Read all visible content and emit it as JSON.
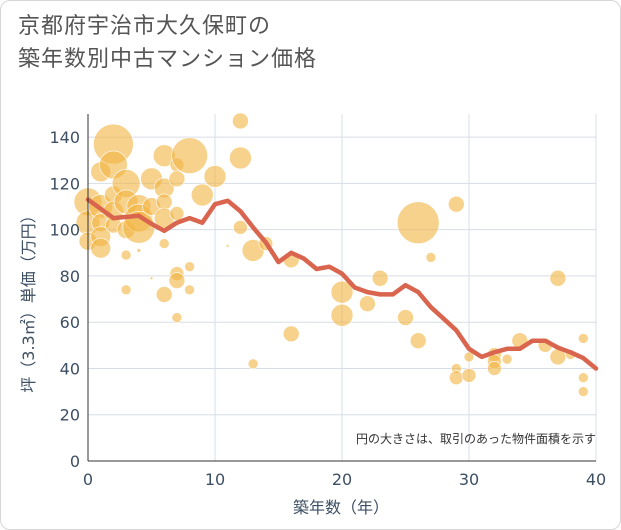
{
  "title_line1": "京都府宇治市大久保町の",
  "title_line2": "築年数別中古マンション価格",
  "chart_data": {
    "type": "scatter",
    "title": "京都府宇治市大久保町の築年数別中古マンション価格",
    "xlabel": "築年数（年）",
    "ylabel": "坪（3.3㎡）単価（万円）",
    "xlim": [
      0,
      40
    ],
    "ylim": [
      0,
      150
    ],
    "x_ticks": [
      0,
      10,
      20,
      30,
      40
    ],
    "y_ticks": [
      0,
      20,
      40,
      60,
      80,
      100,
      120,
      140
    ],
    "grid": true,
    "annotation": "円の大きさは、取引のあった物件面積を示す",
    "colors": {
      "bubble": "#f2b441",
      "line": "#d9654f",
      "grid": "#d7dde4",
      "axis_text": "#3d4f63"
    },
    "series": [
      {
        "kind": "bubble",
        "points": [
          {
            "x": 0,
            "y": 112,
            "s": 14
          },
          {
            "x": 0,
            "y": 103,
            "s": 12
          },
          {
            "x": 0,
            "y": 95,
            "s": 9
          },
          {
            "x": 1,
            "y": 125,
            "s": 10
          },
          {
            "x": 1,
            "y": 110,
            "s": 12
          },
          {
            "x": 1,
            "y": 103,
            "s": 9
          },
          {
            "x": 1,
            "y": 97,
            "s": 10
          },
          {
            "x": 1,
            "y": 92,
            "s": 10
          },
          {
            "x": 2,
            "y": 137,
            "s": 20
          },
          {
            "x": 2,
            "y": 128,
            "s": 14
          },
          {
            "x": 2,
            "y": 115,
            "s": 9
          },
          {
            "x": 2,
            "y": 108,
            "s": 10
          },
          {
            "x": 2,
            "y": 102,
            "s": 8
          },
          {
            "x": 3,
            "y": 120,
            "s": 14
          },
          {
            "x": 3,
            "y": 112,
            "s": 12
          },
          {
            "x": 3,
            "y": 100,
            "s": 9
          },
          {
            "x": 3,
            "y": 89,
            "s": 5
          },
          {
            "x": 3,
            "y": 74,
            "s": 5
          },
          {
            "x": 4,
            "y": 110,
            "s": 12
          },
          {
            "x": 4,
            "y": 105,
            "s": 14
          },
          {
            "x": 4,
            "y": 101,
            "s": 16
          },
          {
            "x": 4,
            "y": 91,
            "s": 2
          },
          {
            "x": 5,
            "y": 122,
            "s": 11
          },
          {
            "x": 5,
            "y": 110,
            "s": 9
          },
          {
            "x": 5,
            "y": 79,
            "s": 1.5
          },
          {
            "x": 6,
            "y": 132,
            "s": 11
          },
          {
            "x": 6,
            "y": 118,
            "s": 10
          },
          {
            "x": 6,
            "y": 112,
            "s": 8
          },
          {
            "x": 6,
            "y": 105,
            "s": 10
          },
          {
            "x": 6,
            "y": 94,
            "s": 5
          },
          {
            "x": 6,
            "y": 72,
            "s": 8
          },
          {
            "x": 7,
            "y": 128,
            "s": 7
          },
          {
            "x": 7,
            "y": 122,
            "s": 8
          },
          {
            "x": 7,
            "y": 107,
            "s": 7
          },
          {
            "x": 7,
            "y": 81,
            "s": 7
          },
          {
            "x": 7,
            "y": 78,
            "s": 8
          },
          {
            "x": 7,
            "y": 62,
            "s": 5
          },
          {
            "x": 8,
            "y": 132,
            "s": 18
          },
          {
            "x": 8,
            "y": 84,
            "s": 5
          },
          {
            "x": 8,
            "y": 74,
            "s": 5
          },
          {
            "x": 9,
            "y": 115,
            "s": 11
          },
          {
            "x": 10,
            "y": 123,
            "s": 11
          },
          {
            "x": 11,
            "y": 93,
            "s": 1.5
          },
          {
            "x": 12,
            "y": 147,
            "s": 8
          },
          {
            "x": 12,
            "y": 131,
            "s": 11
          },
          {
            "x": 12,
            "y": 101,
            "s": 7
          },
          {
            "x": 13,
            "y": 91,
            "s": 11
          },
          {
            "x": 13,
            "y": 42,
            "s": 5
          },
          {
            "x": 14,
            "y": 94,
            "s": 7
          },
          {
            "x": 16,
            "y": 87,
            "s": 8
          },
          {
            "x": 16,
            "y": 55,
            "s": 8
          },
          {
            "x": 20,
            "y": 73,
            "s": 11
          },
          {
            "x": 20,
            "y": 63,
            "s": 11
          },
          {
            "x": 22,
            "y": 68,
            "s": 8
          },
          {
            "x": 23,
            "y": 79,
            "s": 8
          },
          {
            "x": 25,
            "y": 62,
            "s": 8
          },
          {
            "x": 26,
            "y": 103,
            "s": 21
          },
          {
            "x": 26,
            "y": 52,
            "s": 8
          },
          {
            "x": 27,
            "y": 88,
            "s": 5
          },
          {
            "x": 29,
            "y": 111,
            "s": 8
          },
          {
            "x": 29,
            "y": 40,
            "s": 5
          },
          {
            "x": 29,
            "y": 36,
            "s": 7
          },
          {
            "x": 30,
            "y": 45,
            "s": 5
          },
          {
            "x": 30,
            "y": 37,
            "s": 7
          },
          {
            "x": 32,
            "y": 46,
            "s": 7
          },
          {
            "x": 32,
            "y": 43,
            "s": 7
          },
          {
            "x": 32,
            "y": 40,
            "s": 7
          },
          {
            "x": 33,
            "y": 44,
            "s": 5
          },
          {
            "x": 34,
            "y": 52,
            "s": 8
          },
          {
            "x": 36,
            "y": 50,
            "s": 7
          },
          {
            "x": 37,
            "y": 79,
            "s": 8
          },
          {
            "x": 37,
            "y": 45,
            "s": 8
          },
          {
            "x": 38,
            "y": 46,
            "s": 5
          },
          {
            "x": 39,
            "y": 53,
            "s": 5
          },
          {
            "x": 39,
            "y": 36,
            "s": 5
          },
          {
            "x": 39,
            "y": 30,
            "s": 5
          }
        ]
      },
      {
        "kind": "line",
        "x": [
          0,
          1,
          2,
          3,
          4,
          5,
          6,
          7,
          8,
          9,
          10,
          11,
          12,
          13,
          14,
          15,
          16,
          17,
          18,
          19,
          20,
          21,
          22,
          23,
          24,
          25,
          26,
          27,
          28,
          29,
          30,
          31,
          32,
          33,
          34,
          35,
          36,
          37,
          38,
          39,
          40
        ],
        "y": [
          113,
          109,
          105,
          105.5,
          106,
          102.5,
          99.5,
          103,
          105,
          103,
          111,
          112.5,
          108,
          101,
          94.5,
          86,
          90,
          87.5,
          83,
          84,
          81,
          75,
          73,
          72,
          72,
          76,
          73,
          66.5,
          61.5,
          56.5,
          48.5,
          45,
          47,
          48.5,
          48.5,
          52,
          52,
          49,
          47,
          44.5,
          40
        ]
      }
    ]
  }
}
